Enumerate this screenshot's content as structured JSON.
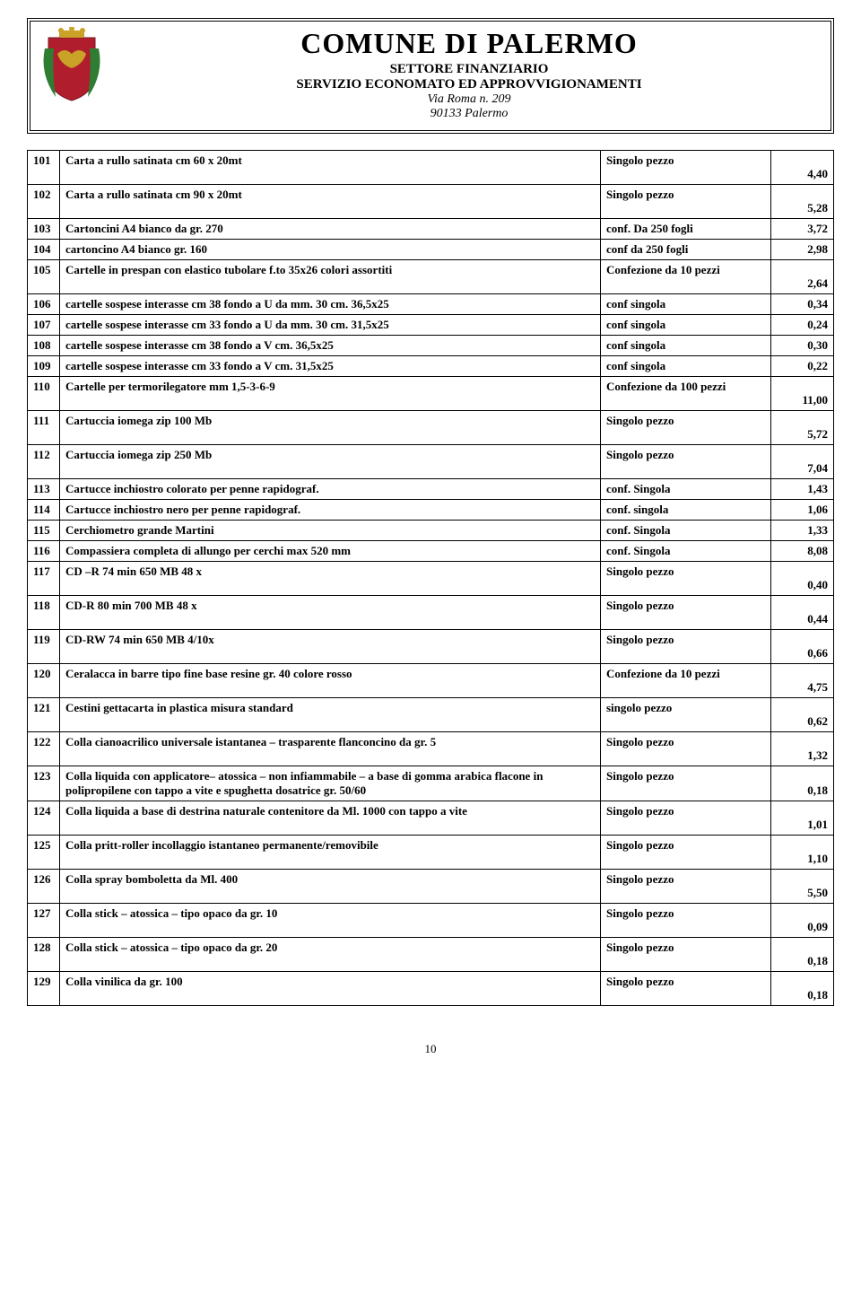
{
  "header": {
    "title": "COMUNE  DI  PALERMO",
    "subtitle1": "SETTORE FINANZIARIO",
    "subtitle2": "SERVIZIO ECONOMATO ED APPROVVIGIONAMENTI",
    "address1": "Via Roma n. 209",
    "address2": "90133 Palermo",
    "crest_colors": {
      "shield": "#b01e2e",
      "eagle": "#c9a227",
      "laurel": "#2e7d32",
      "crown": "#c9a227"
    }
  },
  "rows": [
    {
      "n": "101",
      "desc": "Carta a rullo satinata cm 60 x 20mt",
      "unit": "Singolo pezzo",
      "price": "4,40",
      "below": true
    },
    {
      "n": "102",
      "desc": "Carta a rullo satinata cm 90 x 20mt",
      "unit": "Singolo pezzo",
      "price": "5,28",
      "below": true
    },
    {
      "n": "103",
      "desc": "Cartoncini  A4 bianco da gr. 270",
      "unit": "conf. Da 250 fogli",
      "price": "3,72"
    },
    {
      "n": "104",
      "desc": "cartoncino  A4 bianco gr. 160",
      "unit": "conf da 250 fogli",
      "price": "2,98"
    },
    {
      "n": "105",
      "desc": "Cartelle in prespan con elastico tubolare f.to 35x26 colori assortiti",
      "unit": "Confezione da 10 pezzi",
      "price": "2,64",
      "below": true
    },
    {
      "n": "106",
      "desc": "cartelle sospese interasse cm 38 fondo a U da mm. 30 cm. 36,5x25",
      "unit": "conf singola",
      "price": "0,34"
    },
    {
      "n": "107",
      "desc": "cartelle sospese interasse cm 33 fondo a U da mm. 30 cm. 31,5x25",
      "unit": "conf singola",
      "price": "0,24"
    },
    {
      "n": "108",
      "desc": "cartelle sospese interasse cm 38 fondo a V cm. 36,5x25",
      "unit": "conf singola",
      "price": "0,30"
    },
    {
      "n": "109",
      "desc": "cartelle sospese interasse cm 33 fondo a V cm. 31,5x25",
      "unit": "conf singola",
      "price": "0,22"
    },
    {
      "n": "110",
      "desc": "Cartelle per termorilegatore mm 1,5-3-6-9",
      "unit": "Confezione da 100 pezzi",
      "price": "11,00",
      "below": true
    },
    {
      "n": "111",
      "desc": "Cartuccia iomega zip 100 Mb",
      "unit": "Singolo pezzo",
      "price": "5,72",
      "below": true
    },
    {
      "n": "112",
      "desc": "Cartuccia iomega zip 250 Mb",
      "unit": "Singolo pezzo",
      "price": "7,04",
      "below": true
    },
    {
      "n": "113",
      "desc": "Cartucce inchiostro colorato per penne rapidograf.",
      "unit": "conf. Singola",
      "price": "1,43"
    },
    {
      "n": "114",
      "desc": "Cartucce inchiostro nero per penne rapidograf.",
      "unit": "conf. singola",
      "price": "1,06"
    },
    {
      "n": "115",
      "desc": "Cerchiometro grande Martini",
      "unit": "conf. Singola",
      "price": "1,33"
    },
    {
      "n": "116",
      "desc": "Compassiera completa di allungo per cerchi max 520 mm",
      "unit": "conf. Singola",
      "price": "8,08"
    },
    {
      "n": "117",
      "desc": "CD –R 74 min 650 MB 48 x",
      "unit": "Singolo pezzo",
      "price": "0,40",
      "below": true
    },
    {
      "n": "118",
      "desc": "CD-R 80 min  700 MB 48 x",
      "unit": "Singolo pezzo",
      "price": "0,44",
      "below": true
    },
    {
      "n": "119",
      "desc": "CD-RW 74 min 650 MB 4/10x",
      "unit": "Singolo pezzo",
      "price": "0,66",
      "below": true
    },
    {
      "n": "120",
      "desc": "Ceralacca in barre tipo fine base resine gr. 40 colore rosso",
      "unit": "Confezione da 10 pezzi",
      "price": "4,75",
      "below": true
    },
    {
      "n": "121",
      "desc": "Cestini gettacarta in plastica misura standard",
      "unit": "singolo pezzo",
      "price": "0,62",
      "below": true
    },
    {
      "n": "122",
      "desc": "Colla cianoacrilico universale istantanea – trasparente flanconcino da gr. 5",
      "unit": "Singolo pezzo",
      "price": "1,32",
      "below": true
    },
    {
      "n": "123",
      "desc": "Colla liquida  con applicatore– atossica – non infiammabile – a base di gomma arabica flacone in polipropilene con tappo a vite e spughetta dosatrice gr. 50/60",
      "unit": "Singolo pezzo",
      "price": "0,18",
      "below": true
    },
    {
      "n": "124",
      "desc": "Colla liquida a base di destrina naturale contenitore da Ml. 1000 con tappo a vite",
      "unit": "Singolo pezzo",
      "price": "1,01",
      "below": true
    },
    {
      "n": "125",
      "desc": "Colla pritt-roller incollaggio istantaneo permanente/removibile",
      "unit": "Singolo pezzo",
      "price": "1,10",
      "below": true
    },
    {
      "n": "126",
      "desc": "Colla spray bomboletta da Ml. 400",
      "unit": "Singolo pezzo",
      "price": "5,50",
      "below": true
    },
    {
      "n": "127",
      "desc": "Colla stick – atossica – tipo opaco da gr. 10",
      "unit": "Singolo pezzo",
      "price": "0,09",
      "below": true
    },
    {
      "n": "128",
      "desc": "Colla stick – atossica – tipo opaco da gr. 20",
      "unit": "Singolo pezzo",
      "price": "0,18",
      "below": true
    },
    {
      "n": "129",
      "desc": "Colla vinilica  da gr. 100",
      "unit": "Singolo pezzo",
      "price": "0,18",
      "below": true
    }
  ],
  "page_number": "10"
}
